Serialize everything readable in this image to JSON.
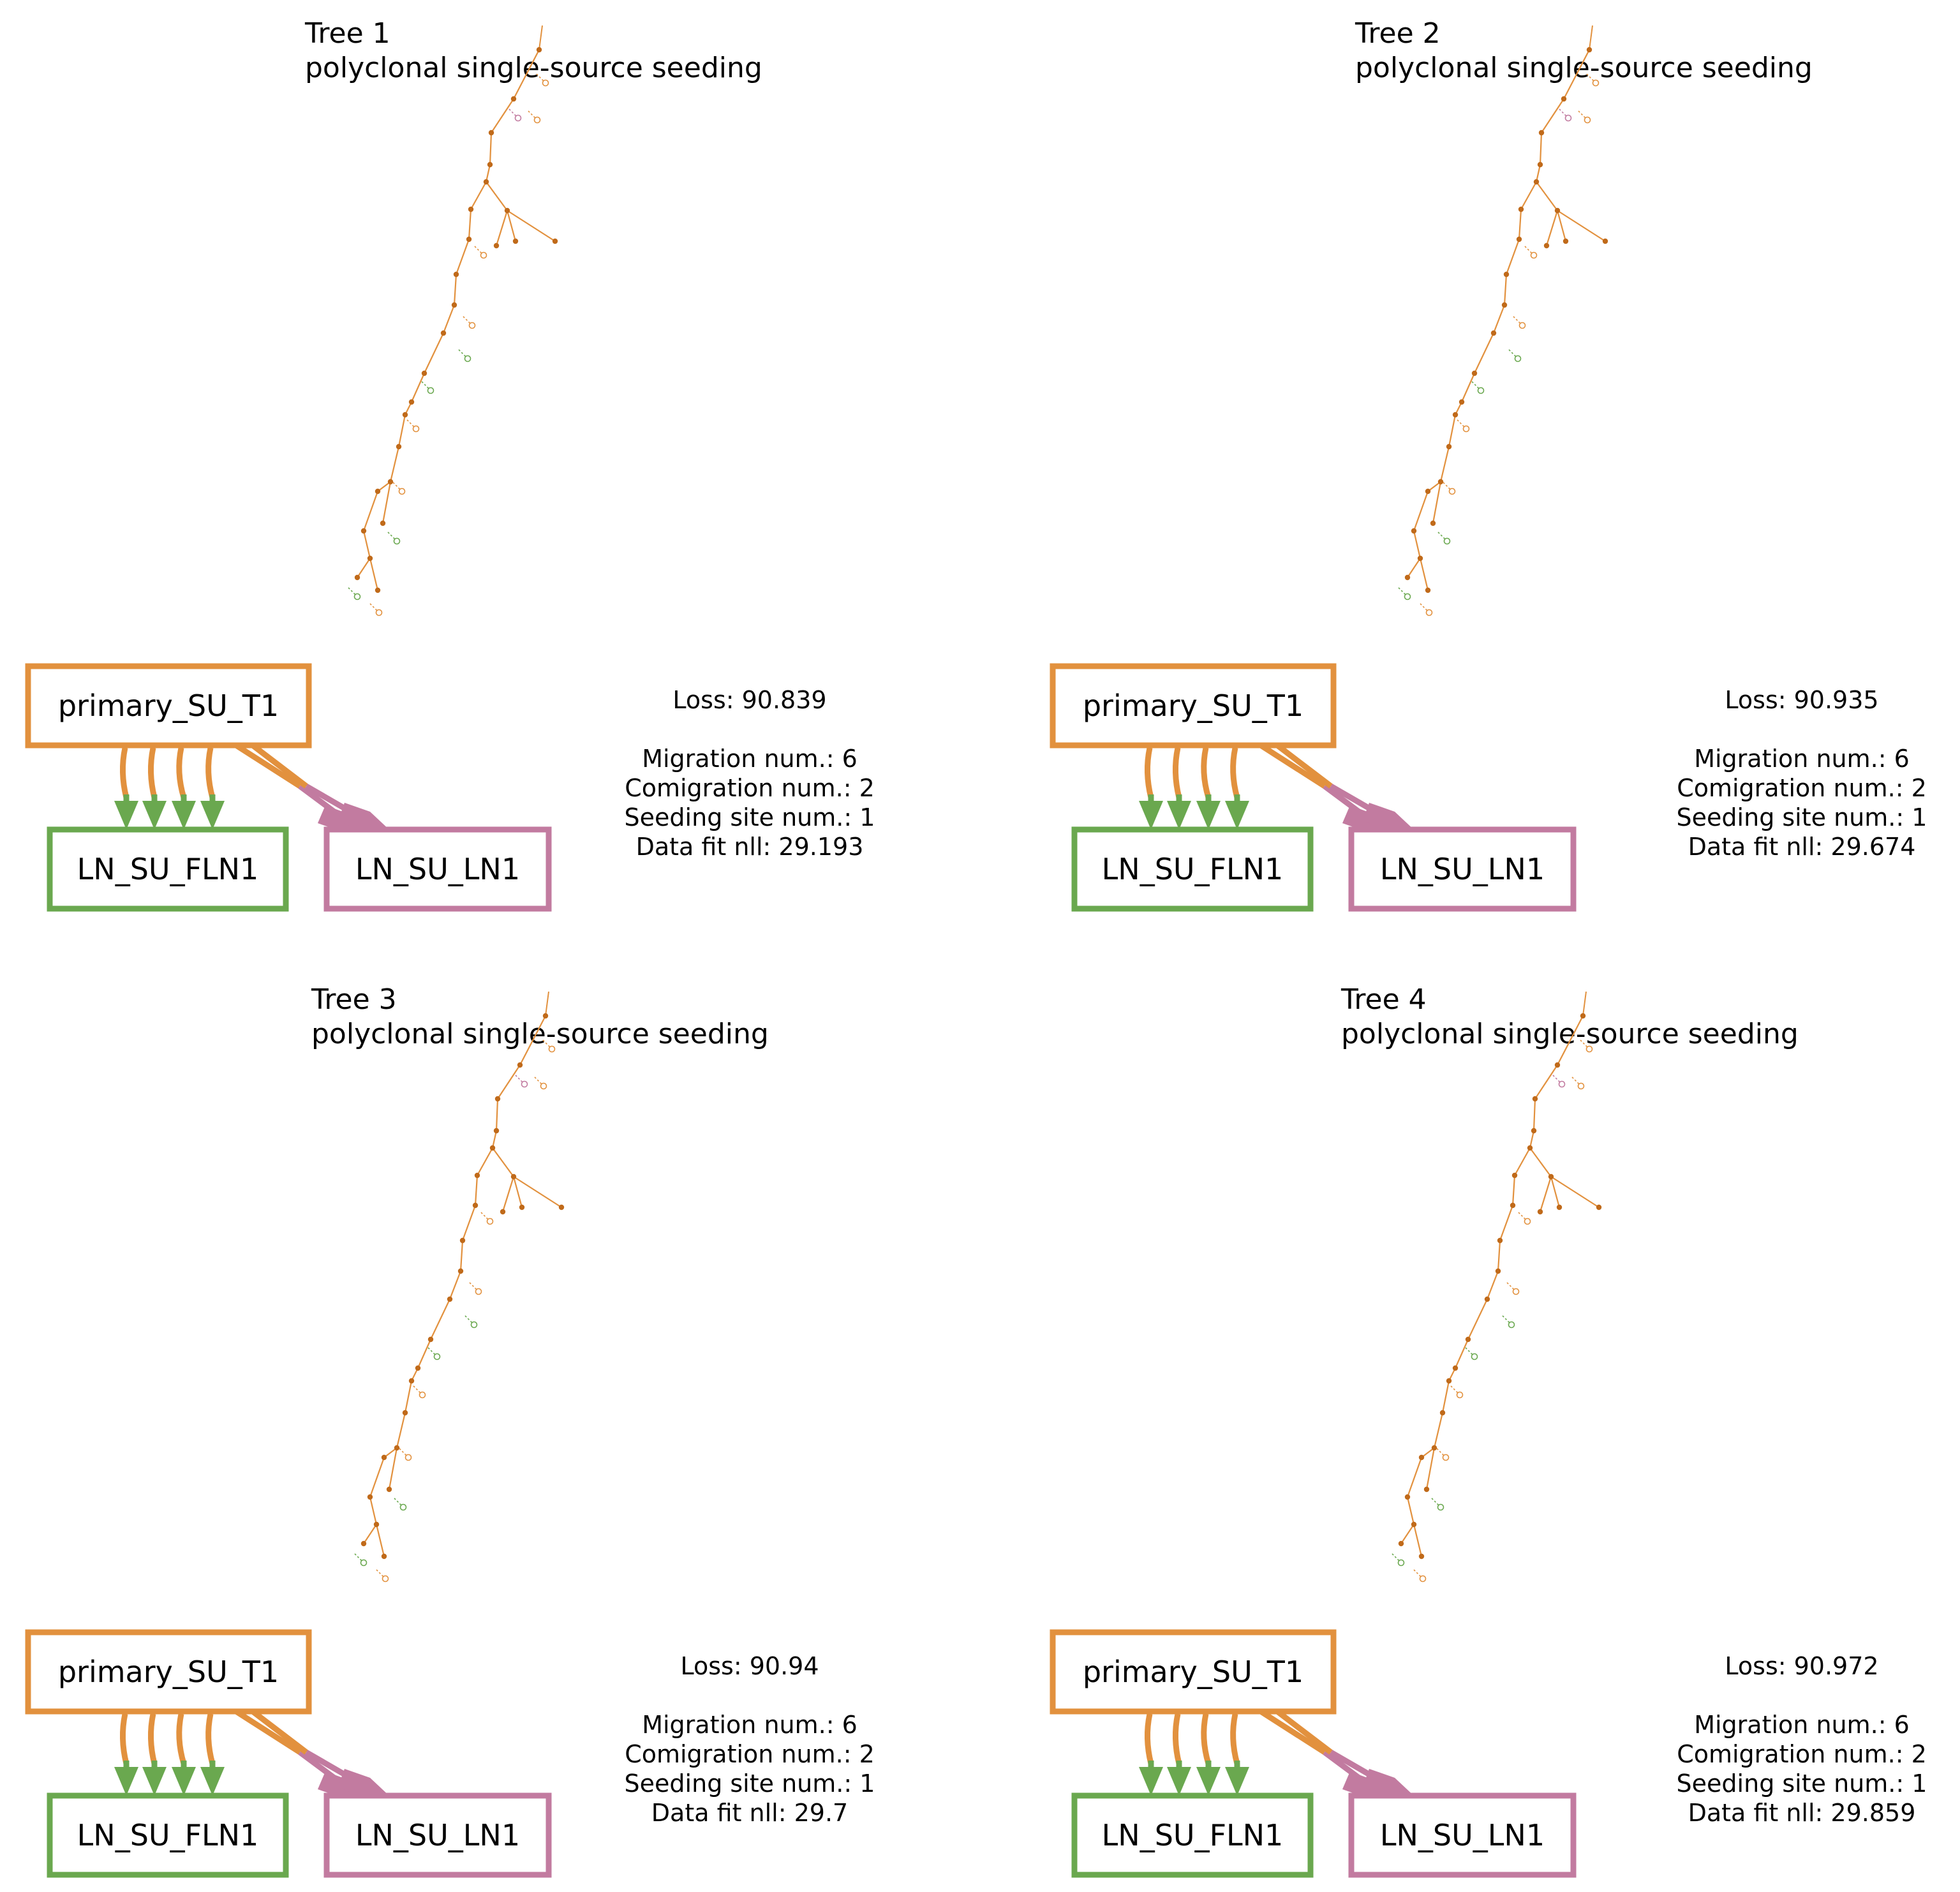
{
  "colors": {
    "primary": "#e2913e",
    "fln": "#6aa84f",
    "ln": "#c27ba0"
  },
  "trees": [
    {
      "title": "Tree 1",
      "subtitle": "polyclonal single-source seeding",
      "sites": {
        "primary": "primary_SU_T1",
        "fln": "LN_SU_FLN1",
        "ln": "LN_SU_LN1"
      },
      "stats": {
        "loss": "Loss: 90.839",
        "migration": "Migration num.: 6",
        "comigration": "Comigration num.: 2",
        "seeding": "Seeding site num.: 1",
        "nll": "Data fit nll: 29.193"
      }
    },
    {
      "title": "Tree 2",
      "subtitle": "polyclonal single-source seeding",
      "sites": {
        "primary": "primary_SU_T1",
        "fln": "LN_SU_FLN1",
        "ln": "LN_SU_LN1"
      },
      "stats": {
        "loss": "Loss: 90.935",
        "migration": "Migration num.: 6",
        "comigration": "Comigration num.: 2",
        "seeding": "Seeding site num.: 1",
        "nll": "Data fit nll: 29.674"
      }
    },
    {
      "title": "Tree 3",
      "subtitle": "polyclonal single-source seeding",
      "sites": {
        "primary": "primary_SU_T1",
        "fln": "LN_SU_FLN1",
        "ln": "LN_SU_LN1"
      },
      "stats": {
        "loss": "Loss: 90.94",
        "migration": "Migration num.: 6",
        "comigration": "Comigration num.: 2",
        "seeding": "Seeding site num.: 1",
        "nll": "Data fit nll: 29.7"
      }
    },
    {
      "title": "Tree 4",
      "subtitle": "polyclonal single-source seeding",
      "sites": {
        "primary": "primary_SU_T1",
        "fln": "LN_SU_FLN1",
        "ln": "LN_SU_LN1"
      },
      "stats": {
        "loss": "Loss: 90.972",
        "migration": "Migration num.: 6",
        "comigration": "Comigration num.: 2",
        "seeding": "Seeding site num.: 1",
        "nll": "Data fit nll: 29.859"
      }
    }
  ]
}
